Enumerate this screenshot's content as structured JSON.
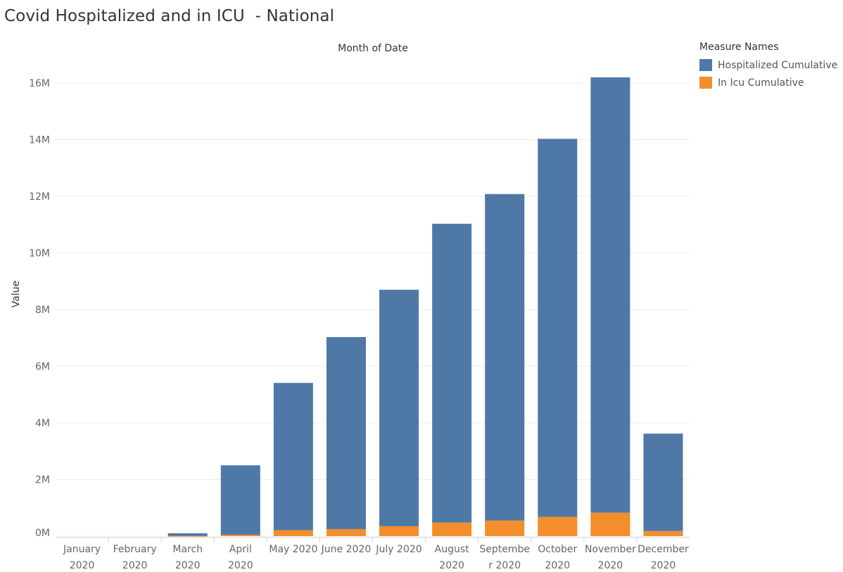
{
  "title": "Covid Hospitalized and in ICU  - National",
  "chart_data": {
    "type": "bar",
    "stacked": true,
    "title": "Covid Hospitalized and in ICU  - National",
    "xlabel": "Month of Date",
    "ylabel": "Value",
    "ylim": [
      0,
      16900000
    ],
    "y_ticks": [
      0,
      2000000,
      4000000,
      6000000,
      8000000,
      10000000,
      12000000,
      14000000,
      16000000
    ],
    "y_tick_labels": [
      "0M",
      "2M",
      "4M",
      "6M",
      "8M",
      "10M",
      "12M",
      "14M",
      "16M"
    ],
    "grid": "horizontal",
    "legend_placement": "top-right",
    "categories": [
      [
        "January",
        "2020"
      ],
      [
        "February",
        "2020"
      ],
      [
        "March",
        "2020"
      ],
      [
        "April",
        "2020"
      ],
      [
        "May 2020",
        ""
      ],
      [
        "June 2020",
        ""
      ],
      [
        "July 2020",
        ""
      ],
      [
        "August",
        "2020"
      ],
      [
        "Septembe",
        "r 2020"
      ],
      [
        "October",
        "2020"
      ],
      [
        "November",
        "2020"
      ],
      [
        "December",
        "2020"
      ]
    ],
    "legend_title": "Measure Names",
    "series": [
      {
        "name": "In Icu Cumulative",
        "color": "#f28e2b",
        "values": [
          0,
          0,
          5000,
          50000,
          210000,
          250000,
          350000,
          480000,
          550000,
          680000,
          830000,
          180000
        ]
      },
      {
        "name": "Hospitalized Cumulative",
        "color": "#4e79a7",
        "values": [
          0,
          0,
          95000,
          2450000,
          5200000,
          6780000,
          8350000,
          10550000,
          11530000,
          13350000,
          15370000,
          3440000
        ]
      }
    ]
  }
}
